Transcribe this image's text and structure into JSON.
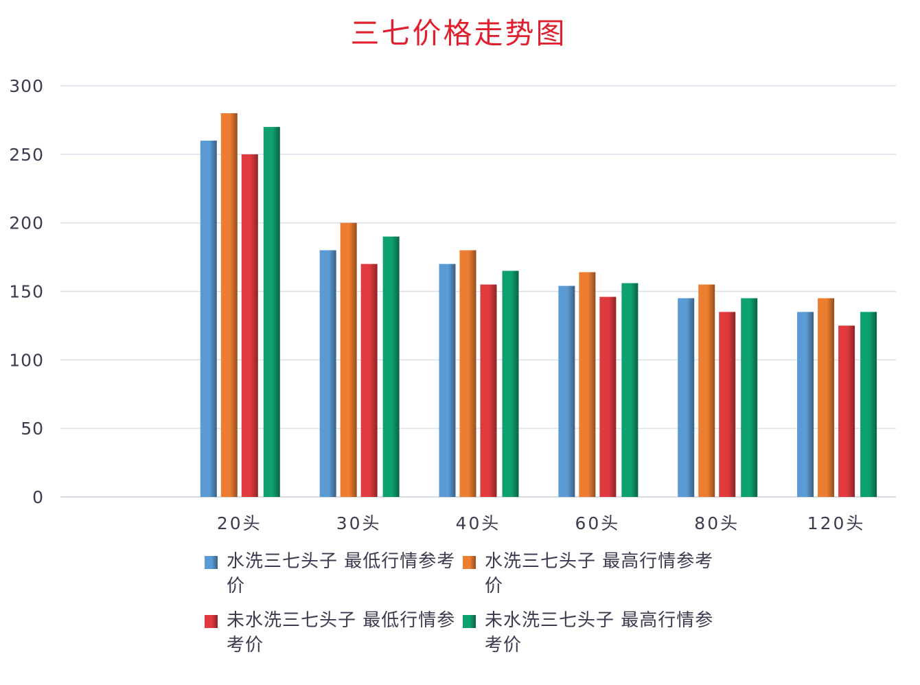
{
  "chart_data": {
    "type": "bar",
    "title": "三七价格走势图",
    "title_color": "#e0202e",
    "categories": [
      "20头",
      "30头",
      "40头",
      "60头",
      "80头",
      "120头"
    ],
    "ylim": [
      0,
      300
    ],
    "yticks": [
      0,
      50,
      100,
      150,
      200,
      250,
      300
    ],
    "grid": true,
    "legend_position": "bottom",
    "series": [
      {
        "name": "水洗三七头子 最低行情参考价",
        "color": "#5b9bd5",
        "values": [
          260,
          180,
          170,
          154,
          145,
          135
        ]
      },
      {
        "name": "水洗三七头子 最高行情参考价",
        "color": "#ed7d31",
        "values": [
          280,
          200,
          180,
          164,
          155,
          145
        ]
      },
      {
        "name": "未水洗三七头子 最低行情参考价",
        "color": "#e03a3e",
        "values": [
          250,
          170,
          155,
          146,
          135,
          125
        ]
      },
      {
        "name": "未水洗三七头子 最高行情参考价",
        "color": "#0fa070",
        "values": [
          270,
          190,
          165,
          156,
          145,
          135
        ]
      }
    ]
  }
}
